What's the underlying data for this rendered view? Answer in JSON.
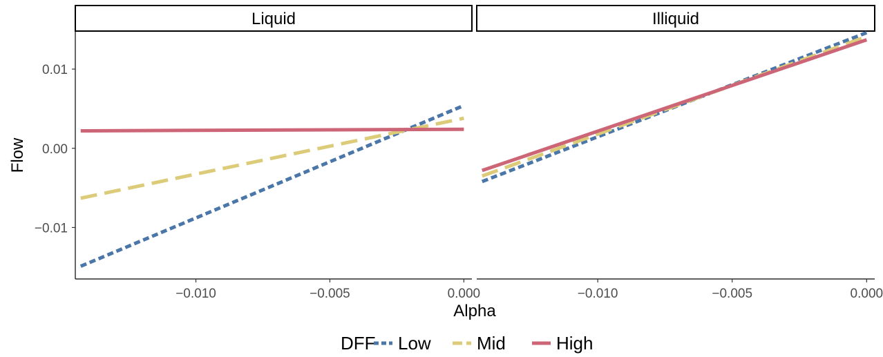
{
  "chart_data": {
    "type": "line",
    "xlabel": "Alpha",
    "ylabel": "Flow",
    "xlim": [
      -0.0145,
      0.0003
    ],
    "ylim": [
      -0.0165,
      0.0148
    ],
    "x_ticks": [
      -0.01,
      -0.005,
      0.0
    ],
    "x_tick_labels": [
      "−0.010",
      "−0.005",
      "0.000"
    ],
    "y_ticks": [
      -0.01,
      0.0,
      0.01
    ],
    "y_tick_labels": [
      "−0.01",
      "0.00",
      "0.01"
    ],
    "grid": false,
    "legend": {
      "title": "DFF",
      "position": "bottom",
      "entries": [
        "Low",
        "Mid",
        "High"
      ]
    },
    "colors": {
      "Low": "#4a77a8",
      "Mid": "#dccb79",
      "High": "#cc6677"
    },
    "line_styles": {
      "Low": "dotted",
      "Mid": "dashed",
      "High": "solid"
    },
    "panels": [
      {
        "strip": "Liquid",
        "series": [
          {
            "name": "Low",
            "x": [
              -0.0143,
              0.0
            ],
            "y": [
              -0.0149,
              0.0054
            ]
          },
          {
            "name": "Mid",
            "x": [
              -0.0143,
              0.0
            ],
            "y": [
              -0.0063,
              0.0038
            ]
          },
          {
            "name": "High",
            "x": [
              -0.0143,
              0.0
            ],
            "y": [
              0.0022,
              0.0024
            ]
          }
        ]
      },
      {
        "strip": "Illiquid",
        "series": [
          {
            "name": "Low",
            "x": [
              -0.0143,
              0.0
            ],
            "y": [
              -0.0042,
              0.0146
            ]
          },
          {
            "name": "Mid",
            "x": [
              -0.0143,
              0.0
            ],
            "y": [
              -0.0035,
              0.0141
            ]
          },
          {
            "name": "High",
            "x": [
              -0.0143,
              0.0
            ],
            "y": [
              -0.0028,
              0.0137
            ]
          }
        ]
      }
    ]
  }
}
